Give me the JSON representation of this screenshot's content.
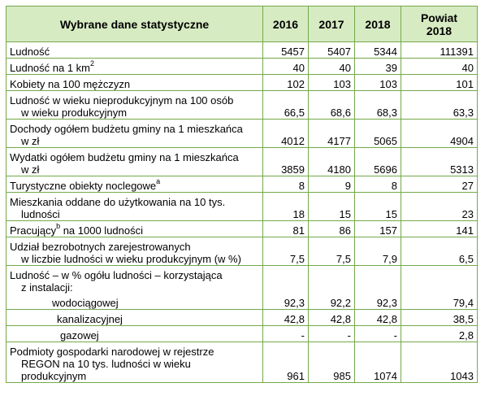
{
  "header": {
    "col_label": "Wybrane dane statystyczne",
    "col_2016": "2016",
    "col_2017": "2017",
    "col_2018": "2018",
    "col_powiat_line1": "Powiat",
    "col_powiat_line2": "2018"
  },
  "rows": [
    {
      "label": "Ludność",
      "v": [
        "5457",
        "5407",
        "5344",
        "111391"
      ]
    },
    {
      "label": "Ludność  na 1 km",
      "sup": "2",
      "v": [
        "40",
        "40",
        "39",
        "40"
      ]
    },
    {
      "label": "Kobiety na 100 mężczyzn",
      "v": [
        "102",
        "103",
        "103",
        "101"
      ]
    },
    {
      "label_line1": "Ludność w wieku nieprodukcyjnym na 100 osób",
      "label_line2": "w wieku produkcyjnym",
      "v": [
        "66,5",
        "68,6",
        "68,3",
        "63,3"
      ]
    },
    {
      "label_line1": "Dochody ogółem budżetu gminy na 1 mieszkańca",
      "label_line2": "w zł",
      "v": [
        "4012",
        "4177",
        "5065",
        "4904"
      ]
    },
    {
      "label_line1": "Wydatki ogółem budżetu gminy na 1 mieszkańca",
      "label_line2": "w zł",
      "v": [
        "3859",
        "4180",
        "5696",
        "5313"
      ]
    },
    {
      "label": "Turystyczne obiekty noclegowe",
      "sup": "a",
      "v": [
        "8",
        "9",
        "8",
        "27"
      ]
    },
    {
      "label_line1": "Mieszkania oddane do użytkowania na 10 tys.",
      "label_line2": "ludności",
      "v": [
        "18",
        "15",
        "15",
        "23"
      ]
    },
    {
      "label": "Pracujący",
      "sup": "b",
      "label_after": " na 1000 ludności",
      "v": [
        "81",
        "86",
        "157",
        "141"
      ]
    },
    {
      "label_line1": "Udział bezrobotnych zarejestrowanych",
      "label_line2": "w liczbie ludności w wieku produkcyjnym (w %)",
      "v": [
        "7,5",
        "7,5",
        "7,9",
        "6,5"
      ]
    },
    {
      "label_line1": "Ludność  – w % ogółu ludności – korzystająca",
      "label_line2": "z instalacji:"
    },
    {
      "label": "wodociągowej",
      "v": [
        "92,3",
        "92,2",
        "92,3",
        "79,4"
      ]
    },
    {
      "label": "kanalizacyjnej",
      "v": [
        "42,8",
        "42,8",
        "42,8",
        "38,5"
      ]
    },
    {
      "label": "gazowej",
      "v": [
        "-",
        "-",
        "-",
        "2,8"
      ]
    },
    {
      "label_line1": "Podmioty gospodarki narodowej w rejestrze",
      "label_line2": "REGON na 10 tys. ludności w wieku",
      "label_line3": "produkcyjnym",
      "v": [
        "961",
        "985",
        "1074",
        "1043"
      ]
    }
  ]
}
